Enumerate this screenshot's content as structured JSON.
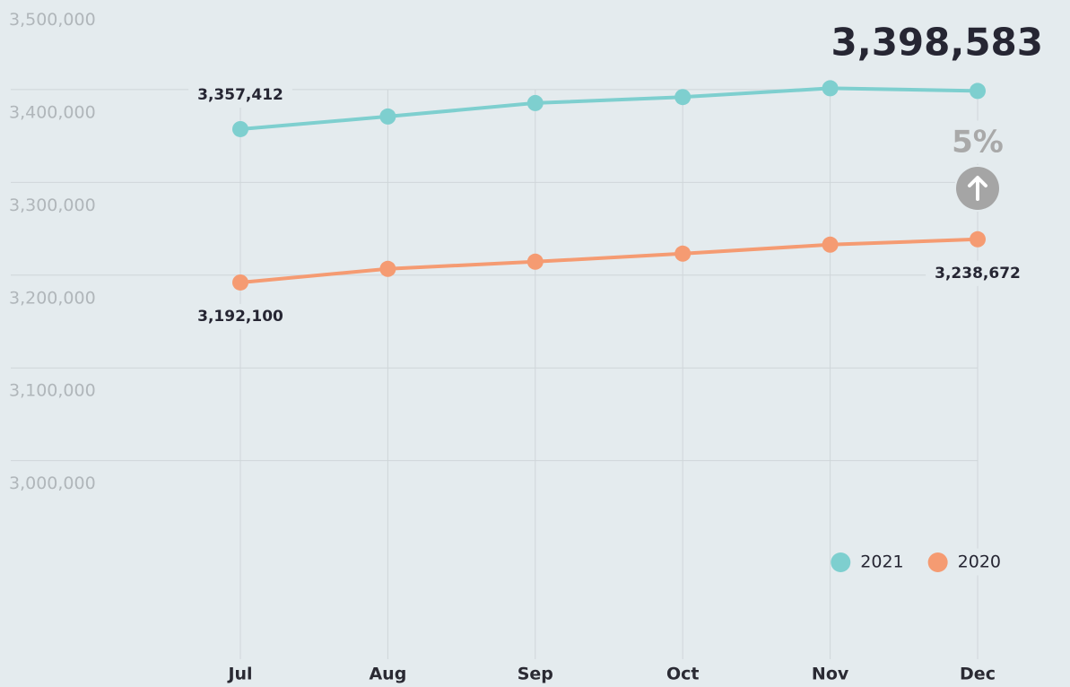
{
  "chart_data": {
    "type": "line",
    "categories": [
      "Jul",
      "Aug",
      "Sep",
      "Oct",
      "Nov",
      "Dec"
    ],
    "series": [
      {
        "name": "2021",
        "color": "#7ecfcf",
        "values": [
          3357412,
          3371000,
          3385500,
          3392000,
          3401500,
          3398583
        ],
        "value_labels": [
          "3,357,412",
          null,
          null,
          null,
          null,
          "3,398,583"
        ]
      },
      {
        "name": "2020",
        "color": "#f59b72",
        "values": [
          3192100,
          3206800,
          3214500,
          3223200,
          3232900,
          3238672
        ],
        "value_labels": [
          "3,192,100",
          null,
          null,
          null,
          null,
          "3,238,672"
        ]
      }
    ],
    "annotation": "5%",
    "ylim": [
      2786000,
      3500000
    ],
    "yticks": [
      {
        "value": 3500000,
        "label": "3,500,000"
      },
      {
        "value": 3400000,
        "label": "3,400,000"
      },
      {
        "value": 3300000,
        "label": "3,300,000"
      },
      {
        "value": 3200000,
        "label": "3,200,000"
      },
      {
        "value": 3100000,
        "label": "3,100,000"
      },
      {
        "value": 3000000,
        "label": "3,000,000"
      }
    ],
    "grid": true,
    "legend": "bottom-right"
  }
}
